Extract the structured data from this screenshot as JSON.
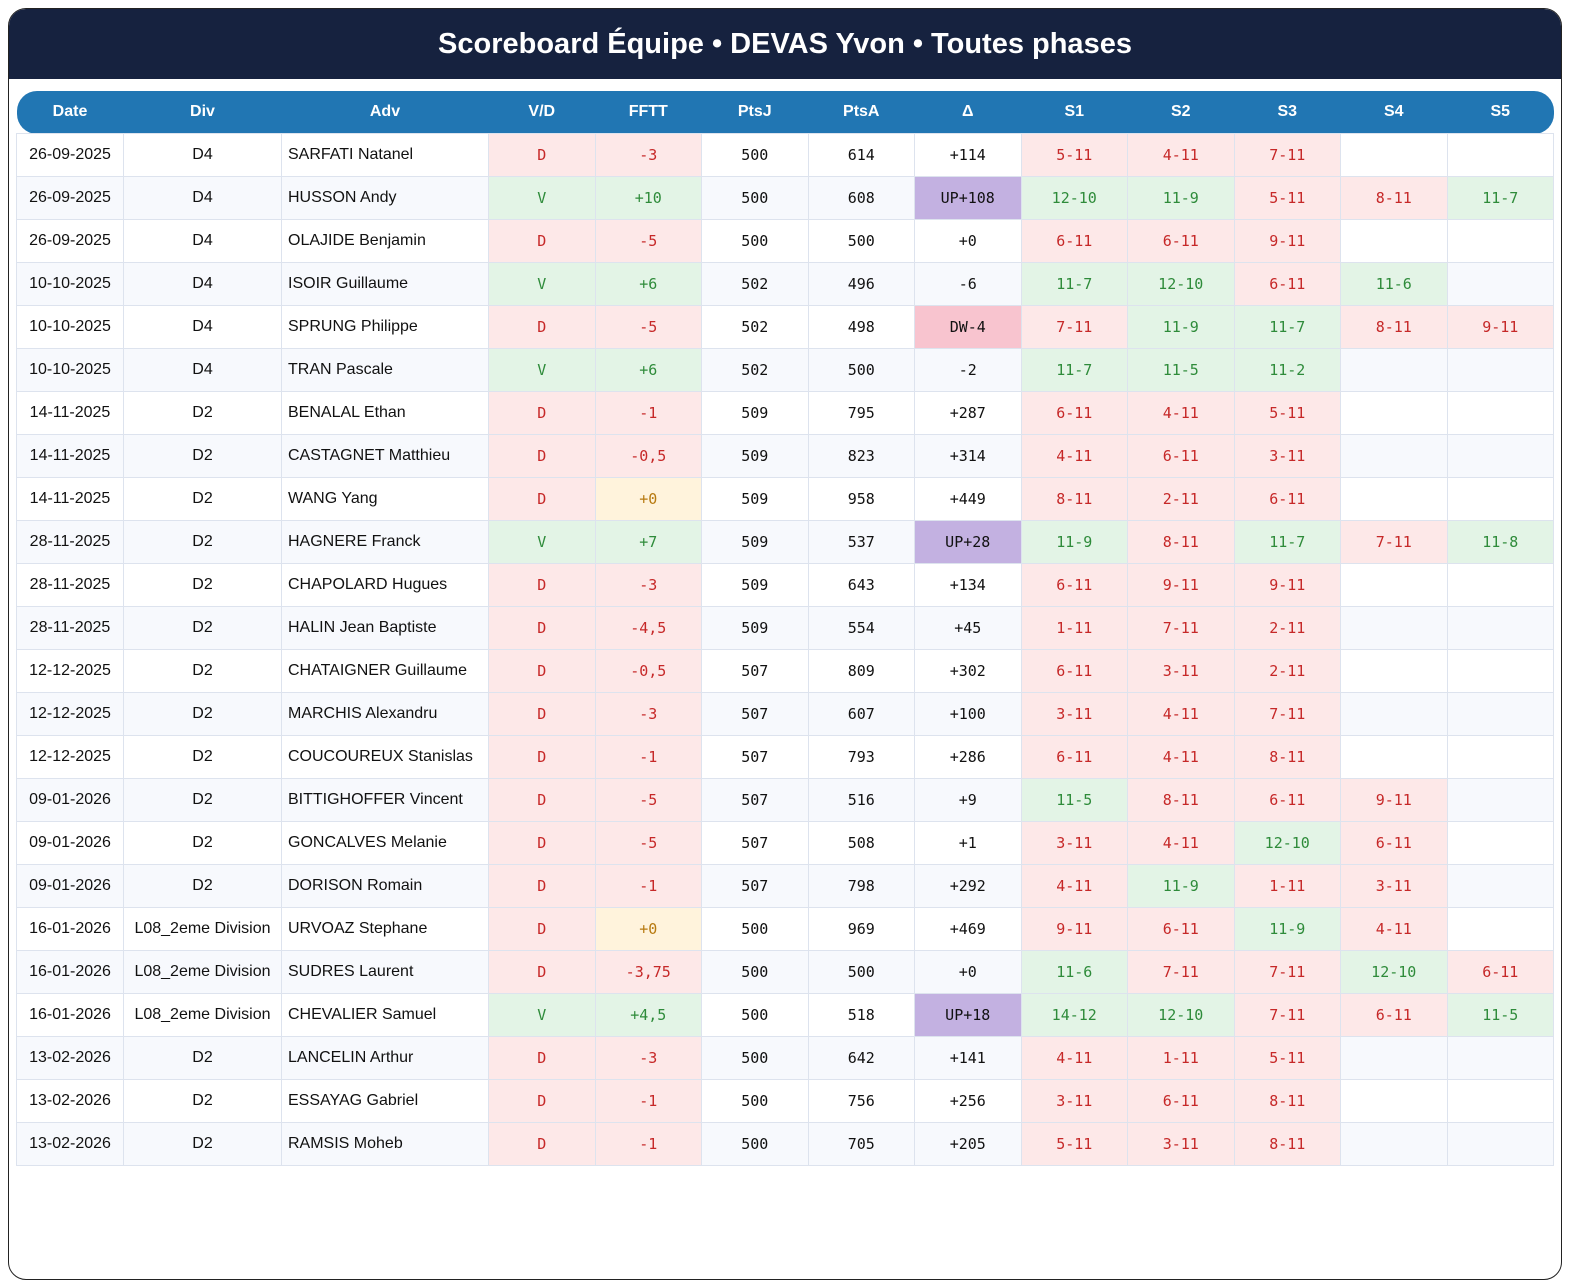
{
  "title": "Scoreboard Équipe • DEVAS Yvon • Toutes phases",
  "columns": [
    "Date",
    "Div",
    "Adv",
    "V/D",
    "FFTT",
    "PtsJ",
    "PtsA",
    "Δ",
    "S1",
    "S2",
    "S3",
    "S4",
    "S5"
  ],
  "colors": {
    "header": "#16223f",
    "table_header": "#2176b3",
    "win": "#2e8b3a",
    "loss": "#c62828",
    "up": "#c3b1e1",
    "dw": "#f8c4cf"
  },
  "rows": [
    [
      "26-09-2025",
      "D4",
      "SARFATI Natanel",
      "D",
      "-3",
      "500",
      "614",
      "+114",
      "5-11",
      "4-11",
      "7-11",
      "",
      ""
    ],
    [
      "26-09-2025",
      "D4",
      "HUSSON Andy",
      "V",
      "+10",
      "500",
      "608",
      "UP+108",
      "12-10",
      "11-9",
      "5-11",
      "8-11",
      "11-7"
    ],
    [
      "26-09-2025",
      "D4",
      "OLAJIDE Benjamin",
      "D",
      "-5",
      "500",
      "500",
      "+0",
      "6-11",
      "6-11",
      "9-11",
      "",
      ""
    ],
    [
      "10-10-2025",
      "D4",
      "ISOIR Guillaume",
      "V",
      "+6",
      "502",
      "496",
      "-6",
      "11-7",
      "12-10",
      "6-11",
      "11-6",
      ""
    ],
    [
      "10-10-2025",
      "D4",
      "SPRUNG Philippe",
      "D",
      "-5",
      "502",
      "498",
      "DW-4",
      "7-11",
      "11-9",
      "11-7",
      "8-11",
      "9-11"
    ],
    [
      "10-10-2025",
      "D4",
      "TRAN Pascale",
      "V",
      "+6",
      "502",
      "500",
      "-2",
      "11-7",
      "11-5",
      "11-2",
      "",
      ""
    ],
    [
      "14-11-2025",
      "D2",
      "BENALAL Ethan",
      "D",
      "-1",
      "509",
      "795",
      "+287",
      "6-11",
      "4-11",
      "5-11",
      "",
      ""
    ],
    [
      "14-11-2025",
      "D2",
      "CASTAGNET Matthieu",
      "D",
      "-0,5",
      "509",
      "823",
      "+314",
      "4-11",
      "6-11",
      "3-11",
      "",
      ""
    ],
    [
      "14-11-2025",
      "D2",
      "WANG Yang",
      "D",
      "+0",
      "509",
      "958",
      "+449",
      "8-11",
      "2-11",
      "6-11",
      "",
      ""
    ],
    [
      "28-11-2025",
      "D2",
      "HAGNERE Franck",
      "V",
      "+7",
      "509",
      "537",
      "UP+28",
      "11-9",
      "8-11",
      "11-7",
      "7-11",
      "11-8"
    ],
    [
      "28-11-2025",
      "D2",
      "CHAPOLARD Hugues",
      "D",
      "-3",
      "509",
      "643",
      "+134",
      "6-11",
      "9-11",
      "9-11",
      "",
      ""
    ],
    [
      "28-11-2025",
      "D2",
      "HALIN Jean Baptiste",
      "D",
      "-4,5",
      "509",
      "554",
      "+45",
      "1-11",
      "7-11",
      "2-11",
      "",
      ""
    ],
    [
      "12-12-2025",
      "D2",
      "CHATAIGNER Guillaume",
      "D",
      "-0,5",
      "507",
      "809",
      "+302",
      "6-11",
      "3-11",
      "2-11",
      "",
      ""
    ],
    [
      "12-12-2025",
      "D2",
      "MARCHIS Alexandru",
      "D",
      "-3",
      "507",
      "607",
      "+100",
      "3-11",
      "4-11",
      "7-11",
      "",
      ""
    ],
    [
      "12-12-2025",
      "D2",
      "COUCOUREUX Stanislas",
      "D",
      "-1",
      "507",
      "793",
      "+286",
      "6-11",
      "4-11",
      "8-11",
      "",
      ""
    ],
    [
      "09-01-2026",
      "D2",
      "BITTIGHOFFER Vincent",
      "D",
      "-5",
      "507",
      "516",
      "+9",
      "11-5",
      "8-11",
      "6-11",
      "9-11",
      ""
    ],
    [
      "09-01-2026",
      "D2",
      "GONCALVES Melanie",
      "D",
      "-5",
      "507",
      "508",
      "+1",
      "3-11",
      "4-11",
      "12-10",
      "6-11",
      ""
    ],
    [
      "09-01-2026",
      "D2",
      "DORISON Romain",
      "D",
      "-1",
      "507",
      "798",
      "+292",
      "4-11",
      "11-9",
      "1-11",
      "3-11",
      ""
    ],
    [
      "16-01-2026",
      "L08_2eme Division",
      "URVOAZ Stephane",
      "D",
      "+0",
      "500",
      "969",
      "+469",
      "9-11",
      "6-11",
      "11-9",
      "4-11",
      ""
    ],
    [
      "16-01-2026",
      "L08_2eme Division",
      "SUDRES Laurent",
      "D",
      "-3,75",
      "500",
      "500",
      "+0",
      "11-6",
      "7-11",
      "7-11",
      "12-10",
      "6-11"
    ],
    [
      "16-01-2026",
      "L08_2eme Division",
      "CHEVALIER Samuel",
      "V",
      "+4,5",
      "500",
      "518",
      "UP+18",
      "14-12",
      "12-10",
      "7-11",
      "6-11",
      "11-5"
    ],
    [
      "13-02-2026",
      "D2",
      "LANCELIN Arthur",
      "D",
      "-3",
      "500",
      "642",
      "+141",
      "4-11",
      "1-11",
      "5-11",
      "",
      ""
    ],
    [
      "13-02-2026",
      "D2",
      "ESSAYAG Gabriel",
      "D",
      "-1",
      "500",
      "756",
      "+256",
      "3-11",
      "6-11",
      "8-11",
      "",
      ""
    ],
    [
      "13-02-2026",
      "D2",
      "RAMSIS Moheb",
      "D",
      "-1",
      "500",
      "705",
      "+205",
      "5-11",
      "3-11",
      "8-11",
      "",
      ""
    ]
  ]
}
